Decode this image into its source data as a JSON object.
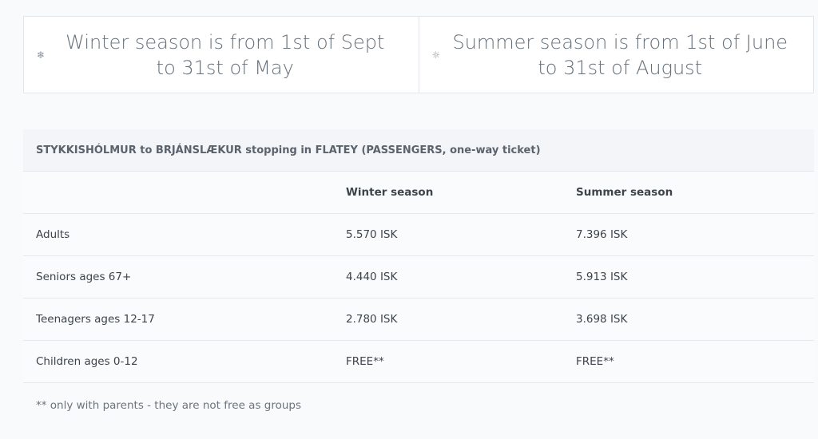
{
  "seasons": [
    {
      "icon": "snowflake-icon",
      "glyph": "❄",
      "text": "Winter season is from 1st of Sept to 31st of May"
    },
    {
      "icon": "sun-icon",
      "glyph": "☼",
      "text": "Summer season is from 1st of June to 31st of August"
    }
  ],
  "table": {
    "title": "STYKKISHÓLMUR to BRJÁNSLÆKUR stopping in FLATEY (PASSENGERS, one-way ticket)",
    "columns": [
      "",
      "Winter season",
      "Summer season"
    ],
    "rows": [
      [
        "Adults",
        "5.570 ISK",
        "7.396 ISK"
      ],
      [
        "Seniors ages 67+",
        "4.440 ISK",
        "5.913 ISK"
      ],
      [
        "Teenagers ages 12-17",
        "2.780 ISK",
        "3.698 ISK"
      ],
      [
        "Children ages 0-12",
        "FREE**",
        "FREE**"
      ]
    ],
    "note": "** only with parents - they are not free as groups"
  }
}
